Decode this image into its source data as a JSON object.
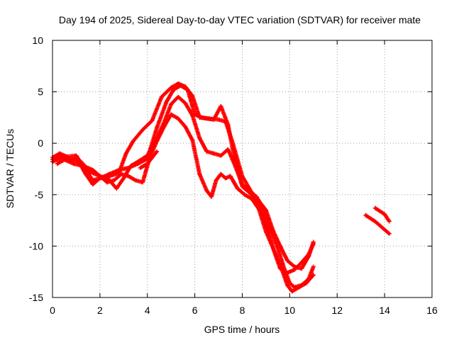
{
  "chart_data": {
    "type": "scatter",
    "title": "Day 194 of 2025, Sidereal Day-to-day VTEC variation (SDTVAR) for receiver mate",
    "xlabel": "GPS time / hours",
    "ylabel": "SDTVAR / TECUs",
    "xlim": [
      0,
      16
    ],
    "ylim": [
      -15,
      10
    ],
    "x_ticks": [
      0,
      2,
      4,
      6,
      8,
      10,
      12,
      14,
      16
    ],
    "y_ticks": [
      -15,
      -10,
      -5,
      0,
      5,
      10
    ],
    "x_tick_labels": [
      "0",
      "2",
      "4",
      "6",
      "8",
      "10",
      "12",
      "14",
      "16"
    ],
    "y_tick_labels": [
      "-15",
      "-10",
      "-5",
      "0",
      "5",
      "10"
    ],
    "grid": true,
    "marker": "plus",
    "series": [
      {
        "name": "track-1",
        "color": "#ff0000",
        "x": [
          0.0,
          0.3,
          0.6,
          1.0,
          1.4,
          1.7,
          2.0,
          2.4,
          2.8,
          3.2,
          3.6,
          4.0,
          4.4,
          4.8,
          5.1,
          5.4,
          5.7,
          6.0,
          6.3,
          6.6,
          7.0,
          7.3,
          7.6,
          8.0,
          8.4,
          8.7,
          9.0,
          9.3,
          9.6,
          9.9,
          10.2,
          10.5,
          10.8,
          11.0
        ],
        "y": [
          -1.4,
          -1.0,
          -1.3,
          -1.2,
          -2.6,
          -3.6,
          -3.4,
          -3.0,
          -2.6,
          -2.4,
          -2.0,
          -1.5,
          1.5,
          4.0,
          5.2,
          5.6,
          5.2,
          2.8,
          2.5,
          2.4,
          2.3,
          2.1,
          0.0,
          -3.2,
          -4.8,
          -5.6,
          -6.5,
          -8.5,
          -10.0,
          -11.4,
          -12.0,
          -12.2,
          -11.0,
          -9.6
        ]
      },
      {
        "name": "track-2",
        "color": "#ff0000",
        "x": [
          0.0,
          0.3,
          0.6,
          1.0,
          1.4,
          1.7,
          2.0,
          2.4,
          2.8,
          3.1,
          3.4,
          3.8,
          4.2,
          4.6,
          5.0,
          5.3,
          5.6,
          5.9,
          6.2,
          6.5,
          6.8,
          7.1,
          7.4,
          7.7,
          8.0,
          8.4,
          8.7,
          9.0,
          9.3,
          9.6,
          9.9,
          10.2,
          10.5,
          10.8,
          11.0
        ],
        "y": [
          -1.6,
          -1.2,
          -1.5,
          -1.4,
          -3.0,
          -4.0,
          -3.4,
          -3.2,
          -2.9,
          -1.0,
          0.2,
          1.3,
          2.2,
          4.5,
          5.4,
          5.8,
          5.5,
          4.6,
          2.5,
          2.4,
          2.3,
          3.6,
          1.8,
          -1.8,
          -4.2,
          -5.0,
          -6.0,
          -7.8,
          -10.2,
          -12.2,
          -12.6,
          -12.3,
          -11.6,
          -10.8,
          -9.8
        ]
      },
      {
        "name": "track-3",
        "color": "#ff0000",
        "x": [
          0.0,
          0.4,
          0.8,
          1.2,
          1.6,
          2.0,
          2.4,
          2.7,
          3.0,
          3.3,
          3.6,
          4.0,
          4.4,
          4.7,
          5.0,
          5.3,
          5.6,
          5.9,
          6.2,
          6.5,
          6.8,
          7.1,
          7.4,
          7.7,
          8.0,
          8.3,
          8.6,
          8.9,
          9.2,
          9.5,
          9.8,
          10.0,
          10.2,
          10.5,
          10.8,
          11.0
        ],
        "y": [
          -1.8,
          -1.4,
          -1.6,
          -1.8,
          -2.8,
          -3.2,
          -3.6,
          -4.4,
          -3.4,
          -2.2,
          -1.8,
          -1.2,
          0.5,
          2.0,
          3.8,
          4.5,
          3.9,
          2.7,
          0.5,
          -0.8,
          -1.0,
          -1.2,
          -0.6,
          -2.2,
          -4.0,
          -4.6,
          -5.2,
          -6.4,
          -8.4,
          -10.2,
          -12.4,
          -13.6,
          -14.0,
          -13.8,
          -13.2,
          -12.0
        ]
      },
      {
        "name": "track-4",
        "color": "#ff0000",
        "x": [
          0.2,
          0.5,
          0.9,
          1.3,
          1.7,
          2.0,
          2.3,
          2.6,
          2.9,
          3.2,
          3.5,
          3.8,
          4.1,
          4.4,
          4.7,
          5.0,
          5.3,
          5.6,
          5.9,
          6.2,
          6.5,
          6.7,
          6.9,
          7.1,
          7.3,
          7.5,
          7.8,
          8.1,
          8.4,
          8.7,
          9.0,
          9.3,
          9.6,
          9.9,
          10.1,
          10.4,
          10.7,
          11.0
        ],
        "y": [
          -2.0,
          -1.6,
          -2.0,
          -2.2,
          -2.6,
          -3.2,
          -3.8,
          -3.6,
          -3.0,
          -3.2,
          -3.6,
          -3.8,
          -1.4,
          0.2,
          1.6,
          2.8,
          2.4,
          1.6,
          0.3,
          -3.0,
          -4.6,
          -5.2,
          -3.6,
          -3.0,
          -3.4,
          -3.2,
          -4.4,
          -5.0,
          -5.4,
          -6.4,
          -8.6,
          -10.2,
          -11.8,
          -13.8,
          -14.4,
          -14.0,
          -13.6,
          -12.8
        ]
      },
      {
        "name": "track-5",
        "color": "#ff0000",
        "x": [
          3.7,
          4.0,
          4.4
        ],
        "y": [
          -2.4,
          -2.0,
          -0.8
        ]
      },
      {
        "name": "track-6",
        "color": "#ff0000",
        "x": [
          13.2,
          13.6,
          14.0,
          14.2
        ],
        "y": [
          -7.0,
          -7.6,
          -8.4,
          -8.8
        ]
      },
      {
        "name": "track-7",
        "color": "#ff0000",
        "x": [
          13.6,
          14.0,
          14.2
        ],
        "y": [
          -6.3,
          -6.9,
          -7.6
        ]
      }
    ]
  }
}
